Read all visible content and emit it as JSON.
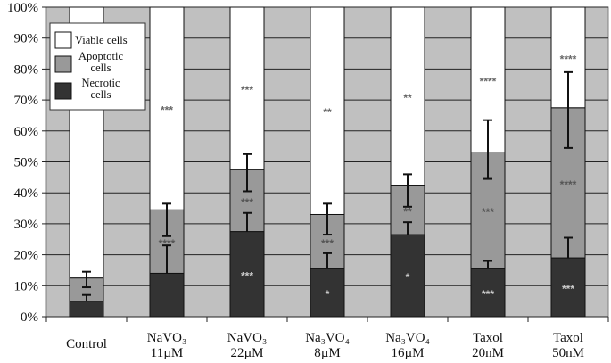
{
  "chart_data": {
    "type": "bar",
    "stacked": true,
    "percent_stacked": true,
    "title": "",
    "xlabel": "",
    "ylabel": "",
    "ylim": [
      0,
      100
    ],
    "yticks": [
      "0%",
      "10%",
      "20%",
      "30%",
      "40%",
      "50%",
      "60%",
      "70%",
      "80%",
      "90%",
      "100%"
    ],
    "categories": [
      {
        "lines": [
          "Control"
        ]
      },
      {
        "lines": [
          "NaVO₃",
          "11µM"
        ]
      },
      {
        "lines": [
          "NaVO₃",
          "22µM"
        ]
      },
      {
        "lines": [
          "Na₃VO₄",
          "8µM"
        ]
      },
      {
        "lines": [
          "Na₃VO₄",
          "16µM"
        ]
      },
      {
        "lines": [
          "Taxol",
          "20nM"
        ]
      },
      {
        "lines": [
          "Taxol",
          "50nM"
        ]
      }
    ],
    "series": [
      {
        "name": "Necrotic cells",
        "legend_lines": [
          "Necrotic",
          "cells"
        ],
        "color": "#333333",
        "values": [
          5,
          14,
          27.5,
          15.5,
          26.5,
          15.5,
          19
        ],
        "error_plus": [
          2,
          9,
          6,
          5,
          4,
          2.5,
          6.5
        ],
        "significance": [
          "",
          "",
          "***",
          "*",
          "*",
          "***",
          "***"
        ]
      },
      {
        "name": "Apoptotic cells",
        "legend_lines": [
          "Apoptotic",
          "cells"
        ],
        "color": "#999999",
        "values": [
          7.5,
          20.5,
          20,
          17.5,
          16,
          37.5,
          48.5
        ],
        "error_plus": [
          2,
          2,
          5,
          3.5,
          3.5,
          10.5,
          11.5
        ],
        "significance": [
          "",
          "****",
          "***",
          "***",
          "**",
          "***",
          "****"
        ]
      },
      {
        "name": "Viable cells",
        "legend_lines": [
          "Viable cells"
        ],
        "color": "#ffffff",
        "values": [
          87.5,
          65.5,
          52.5,
          67,
          57.5,
          47,
          32.5
        ],
        "error_minus": [
          3,
          8.5,
          7,
          6.5,
          7,
          8.5,
          13
        ],
        "significance": [
          "",
          "***",
          "***",
          "**",
          "**",
          "****",
          "****"
        ]
      }
    ],
    "legend_position": "top-left-inside",
    "grid": true,
    "plot_background": "#c0c0c0"
  }
}
